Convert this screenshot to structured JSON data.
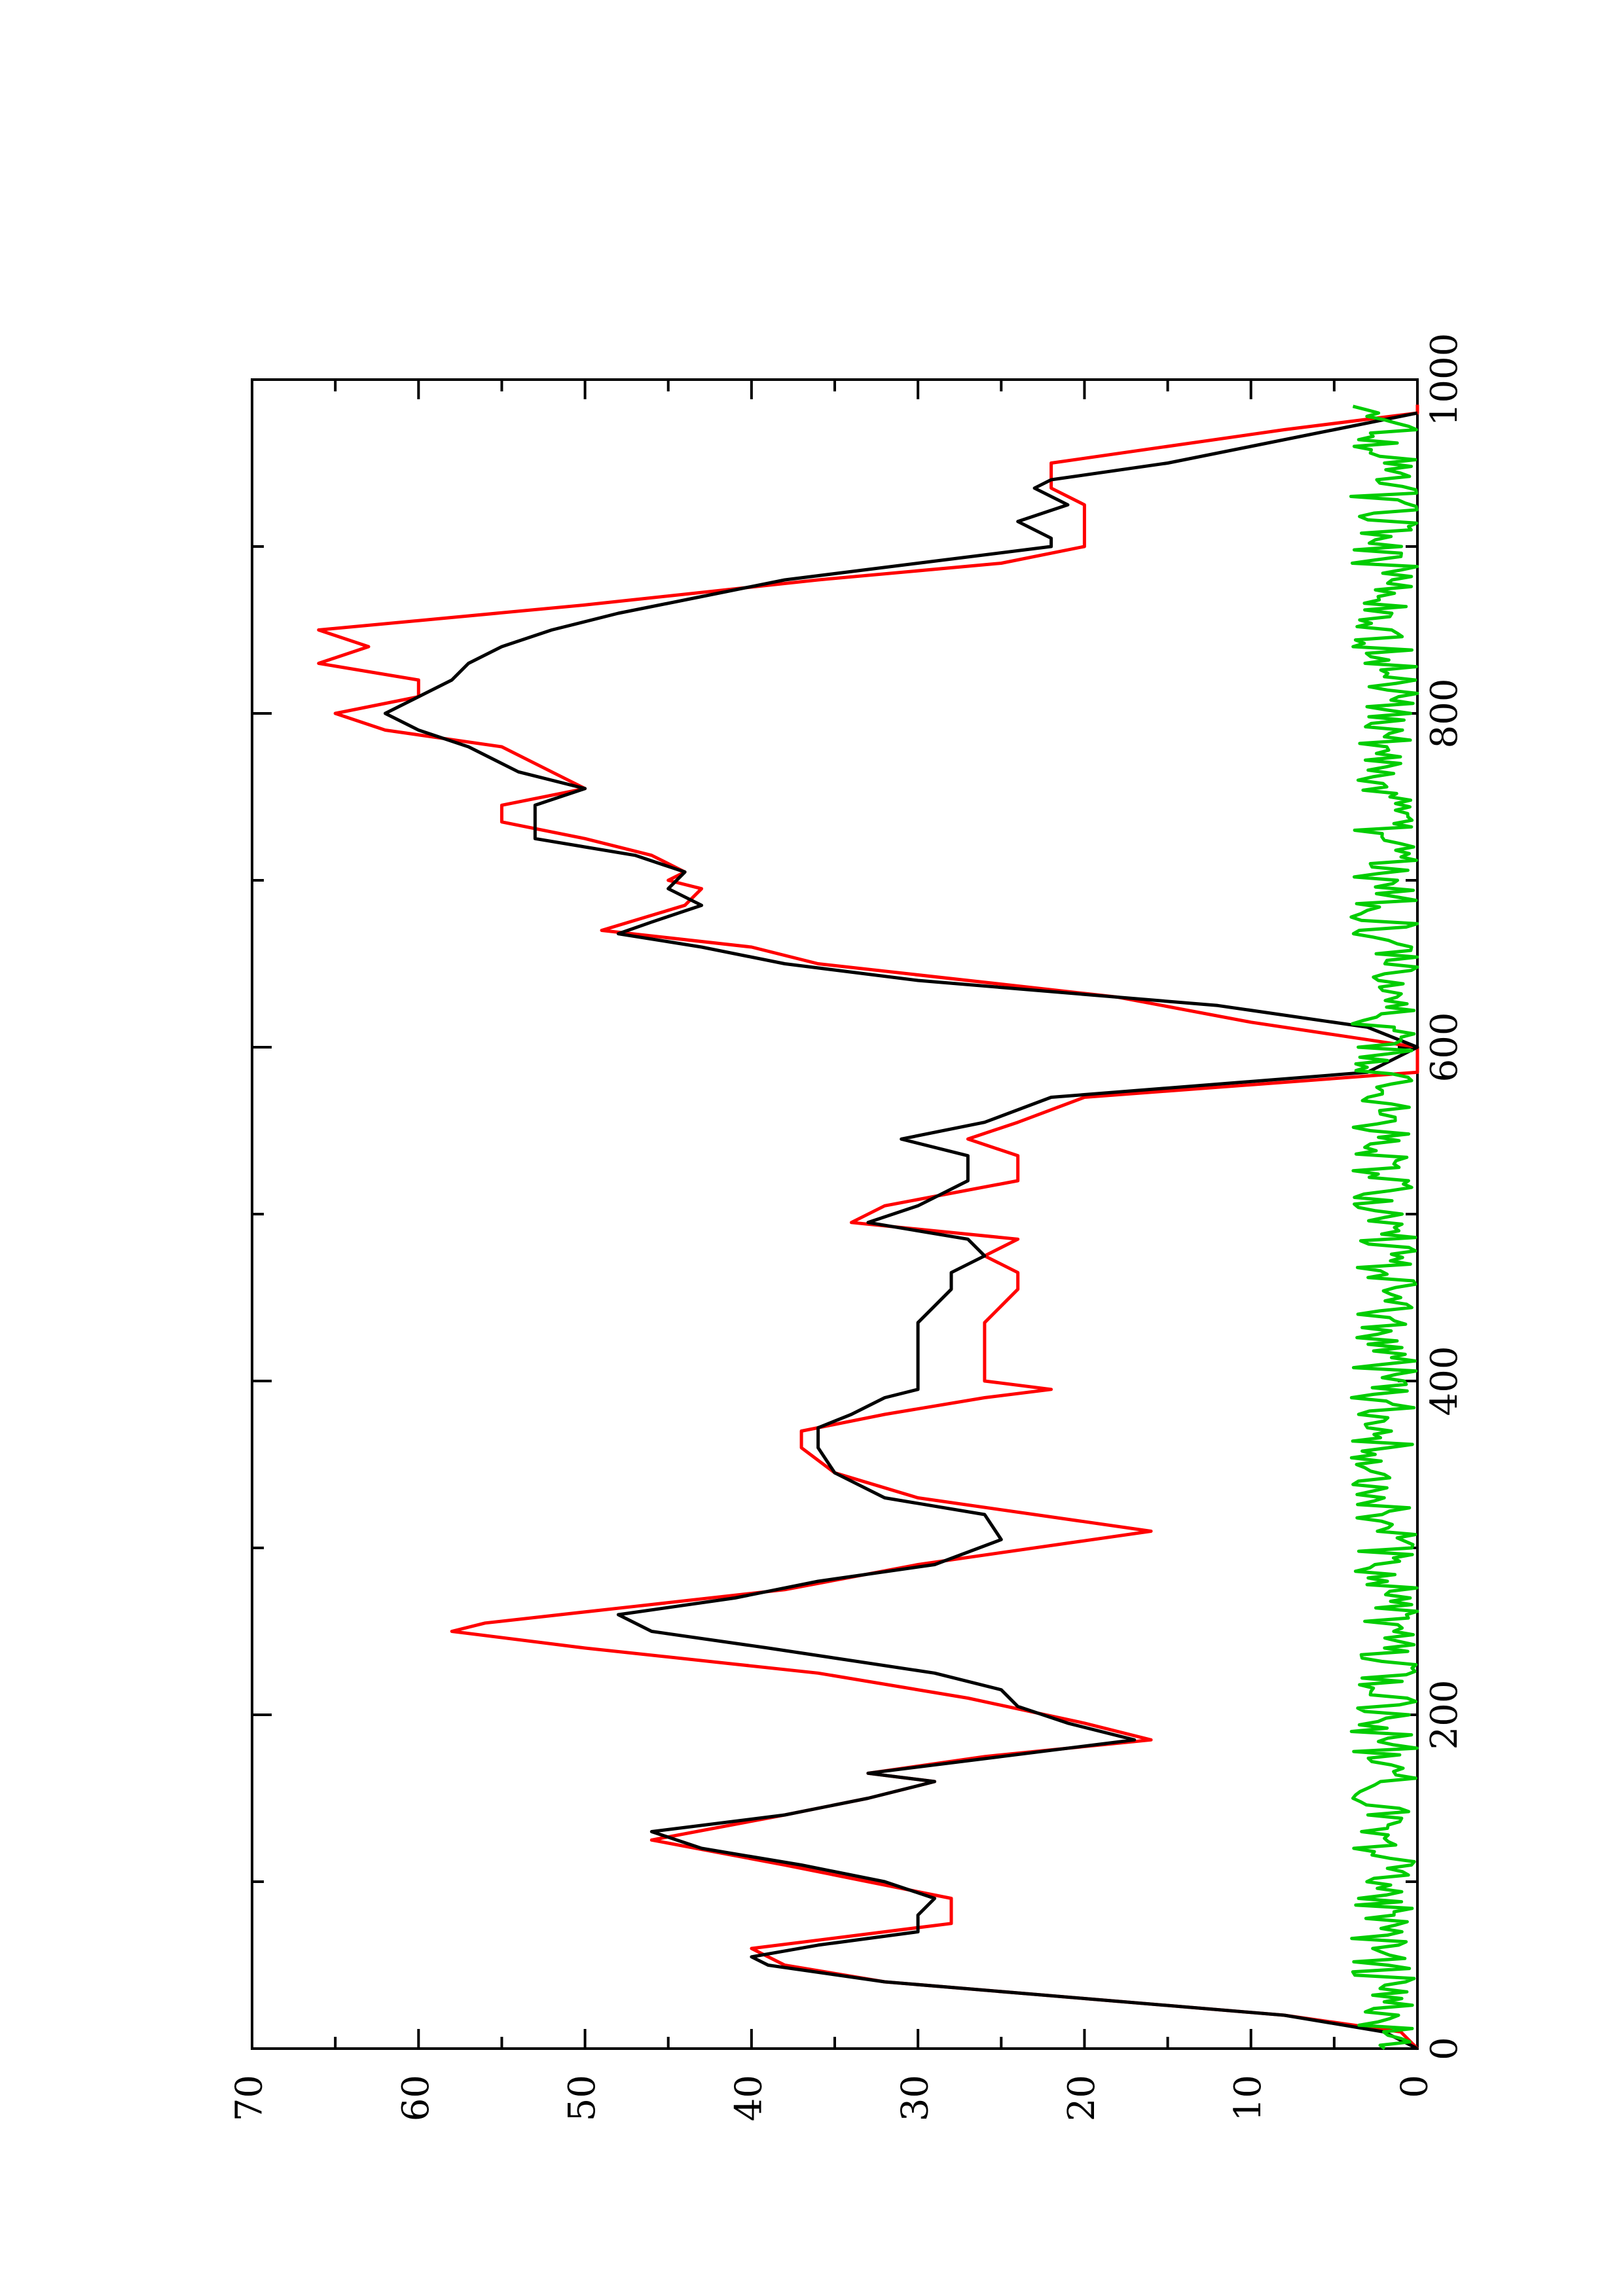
{
  "chart_data": {
    "type": "line",
    "title": "",
    "xlabel": "",
    "ylabel": "",
    "orientation": "rotated-90-ccw",
    "grid": false,
    "legend": "none",
    "xlim": [
      0,
      1000
    ],
    "ylim": [
      0,
      70
    ],
    "x_ticks": [
      0,
      200,
      400,
      600,
      800,
      1000
    ],
    "x_tick_labels": [
      "0",
      "200",
      "400",
      "600",
      "800",
      "1000"
    ],
    "x_minor_ticks": [
      100,
      300,
      500,
      700,
      900
    ],
    "y_ticks": [
      0,
      10,
      20,
      30,
      40,
      50,
      60,
      70
    ],
    "y_tick_labels": [
      "0",
      "10",
      "20",
      "30",
      "40",
      "50",
      "60",
      "70"
    ],
    "y_minor_ticks": [
      5,
      15,
      25,
      35,
      45,
      55,
      65
    ],
    "series": [
      {
        "color": "#ff0000",
        "points": [
          [
            0,
            0
          ],
          [
            10,
            1
          ],
          [
            20,
            8
          ],
          [
            30,
            20
          ],
          [
            40,
            32
          ],
          [
            50,
            38
          ],
          [
            60,
            40
          ],
          [
            65,
            36
          ],
          [
            75,
            28
          ],
          [
            90,
            28
          ],
          [
            100,
            33
          ],
          [
            110,
            38
          ],
          [
            125,
            46
          ],
          [
            140,
            38
          ],
          [
            150,
            33
          ],
          [
            160,
            29
          ],
          [
            165,
            33
          ],
          [
            175,
            26
          ],
          [
            185,
            16
          ],
          [
            195,
            20
          ],
          [
            210,
            27
          ],
          [
            225,
            36
          ],
          [
            240,
            50
          ],
          [
            250,
            58
          ],
          [
            255,
            56
          ],
          [
            265,
            47
          ],
          [
            275,
            38
          ],
          [
            290,
            30
          ],
          [
            310,
            16
          ],
          [
            320,
            23
          ],
          [
            330,
            30
          ],
          [
            345,
            35
          ],
          [
            360,
            37
          ],
          [
            370,
            37
          ],
          [
            380,
            32
          ],
          [
            390,
            26
          ],
          [
            395,
            22
          ],
          [
            400,
            26
          ],
          [
            410,
            26
          ],
          [
            420,
            26
          ],
          [
            435,
            26
          ],
          [
            445,
            25
          ],
          [
            455,
            24
          ],
          [
            465,
            24
          ],
          [
            475,
            26
          ],
          [
            485,
            24
          ],
          [
            495,
            34
          ],
          [
            505,
            32
          ],
          [
            520,
            24
          ],
          [
            535,
            24
          ],
          [
            545,
            27
          ],
          [
            555,
            24
          ],
          [
            570,
            20
          ],
          [
            585,
            0
          ],
          [
            600,
            0
          ],
          [
            615,
            10
          ],
          [
            630,
            18
          ],
          [
            650,
            36
          ],
          [
            660,
            40
          ],
          [
            670,
            49
          ],
          [
            685,
            44
          ],
          [
            695,
            43
          ],
          [
            700,
            45
          ],
          [
            705,
            44
          ],
          [
            715,
            46
          ],
          [
            725,
            50
          ],
          [
            735,
            55
          ],
          [
            745,
            55
          ],
          [
            755,
            50
          ],
          [
            765,
            52
          ],
          [
            780,
            55
          ],
          [
            790,
            62
          ],
          [
            800,
            65
          ],
          [
            810,
            60
          ],
          [
            820,
            60
          ],
          [
            830,
            66
          ],
          [
            840,
            63
          ],
          [
            850,
            66
          ],
          [
            865,
            50
          ],
          [
            880,
            36
          ],
          [
            890,
            25
          ],
          [
            900,
            20
          ],
          [
            910,
            20
          ],
          [
            925,
            20
          ],
          [
            935,
            22
          ],
          [
            940,
            22
          ],
          [
            950,
            22
          ],
          [
            960,
            15
          ],
          [
            970,
            8
          ],
          [
            980,
            0
          ],
          [
            985,
            0
          ]
        ]
      },
      {
        "color": "#000000",
        "points": [
          [
            0,
            0
          ],
          [
            10,
            2
          ],
          [
            20,
            8
          ],
          [
            30,
            20
          ],
          [
            40,
            32
          ],
          [
            50,
            39
          ],
          [
            55,
            40
          ],
          [
            62,
            36
          ],
          [
            70,
            30
          ],
          [
            80,
            30
          ],
          [
            90,
            29
          ],
          [
            100,
            32
          ],
          [
            110,
            37
          ],
          [
            120,
            43
          ],
          [
            130,
            46
          ],
          [
            140,
            38
          ],
          [
            150,
            33
          ],
          [
            160,
            29
          ],
          [
            165,
            33
          ],
          [
            175,
            25
          ],
          [
            185,
            17
          ],
          [
            195,
            21
          ],
          [
            205,
            24
          ],
          [
            215,
            25
          ],
          [
            225,
            29
          ],
          [
            240,
            39
          ],
          [
            250,
            46
          ],
          [
            260,
            48
          ],
          [
            270,
            41
          ],
          [
            280,
            36
          ],
          [
            290,
            29
          ],
          [
            305,
            25
          ],
          [
            320,
            26
          ],
          [
            330,
            32
          ],
          [
            345,
            35
          ],
          [
            360,
            36
          ],
          [
            372,
            36
          ],
          [
            380,
            34
          ],
          [
            390,
            32
          ],
          [
            395,
            30
          ],
          [
            400,
            30
          ],
          [
            410,
            30
          ],
          [
            420,
            30
          ],
          [
            435,
            30
          ],
          [
            445,
            29
          ],
          [
            455,
            28
          ],
          [
            465,
            28
          ],
          [
            475,
            26
          ],
          [
            485,
            27
          ],
          [
            495,
            33
          ],
          [
            505,
            30
          ],
          [
            520,
            27
          ],
          [
            535,
            27
          ],
          [
            545,
            31
          ],
          [
            555,
            26
          ],
          [
            570,
            22
          ],
          [
            585,
            3
          ],
          [
            600,
            0
          ],
          [
            612,
            3
          ],
          [
            625,
            12
          ],
          [
            640,
            30
          ],
          [
            650,
            38
          ],
          [
            660,
            43
          ],
          [
            668,
            48
          ],
          [
            675,
            46
          ],
          [
            685,
            43
          ],
          [
            695,
            45
          ],
          [
            705,
            44
          ],
          [
            715,
            47
          ],
          [
            725,
            53
          ],
          [
            735,
            53
          ],
          [
            745,
            53
          ],
          [
            755,
            50
          ],
          [
            765,
            54
          ],
          [
            780,
            57
          ],
          [
            790,
            60
          ],
          [
            800,
            62
          ],
          [
            810,
            60
          ],
          [
            820,
            58
          ],
          [
            830,
            57
          ],
          [
            840,
            55
          ],
          [
            850,
            52
          ],
          [
            860,
            48
          ],
          [
            870,
            43
          ],
          [
            880,
            38
          ],
          [
            890,
            30
          ],
          [
            900,
            22
          ],
          [
            905,
            22
          ],
          [
            915,
            24
          ],
          [
            925,
            21
          ],
          [
            935,
            23
          ],
          [
            940,
            22
          ],
          [
            950,
            15
          ],
          [
            960,
            10
          ],
          [
            970,
            5
          ],
          [
            980,
            0
          ]
        ]
      },
      {
        "color": "#00cc00",
        "baseline_note": "noise near zero",
        "max_value": 4
      }
    ]
  }
}
